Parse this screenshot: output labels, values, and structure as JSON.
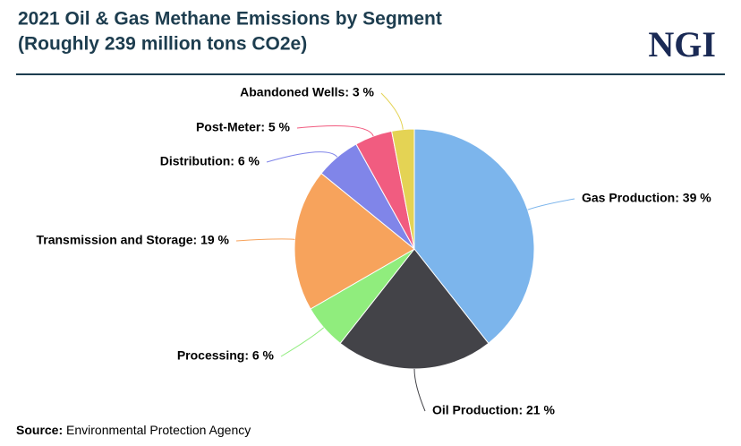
{
  "chart_data": {
    "type": "pie",
    "title": "2021 Oil & Gas Methane Emissions by Segment",
    "subtitle": "(Roughly 239 million tons CO2e)",
    "logo": "NGI",
    "values": [
      39,
      21,
      6,
      19,
      6,
      5,
      3
    ],
    "value_labels": [
      "Gas Production: 39 %",
      "Oil Production: 21 %",
      "Processing: 6 %",
      "Transmission and Storage: 19 %",
      "Distribution: 6 %",
      "Post-Meter: 5 %",
      "Abandoned Wells: 3 %"
    ],
    "colors": [
      "#7cb5ec",
      "#434348",
      "#90ed7d",
      "#f7a35c",
      "#8085e9",
      "#f15c80",
      "#e4d354"
    ],
    "source": {
      "label": "Source:",
      "text": "Environmental Protection Agency"
    }
  }
}
